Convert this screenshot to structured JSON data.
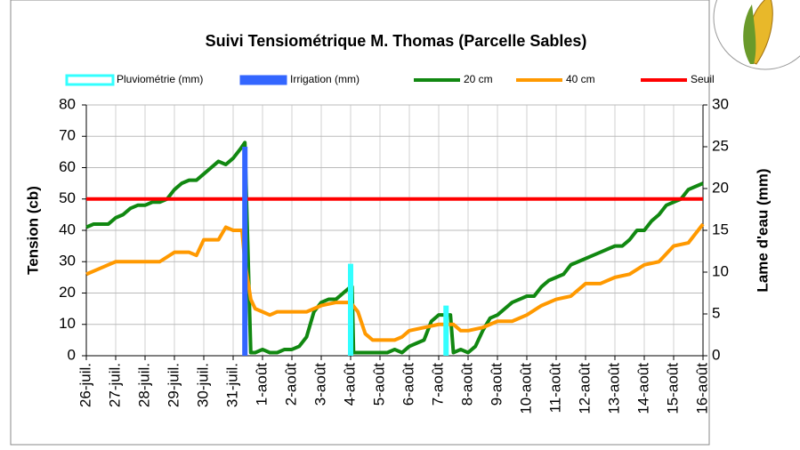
{
  "chart_data": {
    "type": "line",
    "title": "Suivi Tensiométrique M. Thomas (Parcelle Sables)",
    "y_label": "Tension (cb)",
    "y2_label": "Lame d'eau (mm)",
    "xlim": [
      0,
      21
    ],
    "xticks": [
      {
        "value": 0,
        "label": "26-juil."
      },
      {
        "value": 1,
        "label": "27-juil."
      },
      {
        "value": 2,
        "label": "28-juil."
      },
      {
        "value": 3,
        "label": "29-juil."
      },
      {
        "value": 4,
        "label": "30-juil."
      },
      {
        "value": 5,
        "label": "31-juil."
      },
      {
        "value": 6,
        "label": "1-août"
      },
      {
        "value": 7,
        "label": "2-août"
      },
      {
        "value": 8,
        "label": "3-août"
      },
      {
        "value": 9,
        "label": "4-août"
      },
      {
        "value": 10,
        "label": "5-août"
      },
      {
        "value": 11,
        "label": "6-août"
      },
      {
        "value": 12,
        "label": "7-août"
      },
      {
        "value": 13,
        "label": "8-août"
      },
      {
        "value": 14,
        "label": "9-août"
      },
      {
        "value": 15,
        "label": "10-août"
      },
      {
        "value": 16,
        "label": "11-août"
      },
      {
        "value": 17,
        "label": "12-août"
      },
      {
        "value": 18,
        "label": "13-août"
      },
      {
        "value": 19,
        "label": "14-août"
      },
      {
        "value": 20,
        "label": "15-août"
      },
      {
        "value": 21,
        "label": "16-août"
      }
    ],
    "ylim": [
      0,
      80
    ],
    "yticks": [
      0,
      10,
      20,
      30,
      40,
      50,
      60,
      70,
      80
    ],
    "y2lim": [
      0,
      30
    ],
    "y2ticks": [
      0,
      5,
      10,
      15,
      20,
      25,
      30
    ],
    "grid": true,
    "legend": "top",
    "series": [
      {
        "name": "Pluviométrie (mm)",
        "type": "bar",
        "axis": "y2",
        "color": "#33ffff",
        "x": [
          9.0,
          12.25
        ],
        "values": [
          11,
          6
        ]
      },
      {
        "name": "Irrigation (mm)",
        "type": "bar",
        "axis": "y2",
        "color": "#3366ff",
        "x": [
          5.4
        ],
        "values": [
          25
        ]
      },
      {
        "name": "20 cm",
        "type": "line",
        "color": "#118811",
        "x": [
          0,
          0.25,
          0.5,
          0.75,
          1,
          1.25,
          1.5,
          1.75,
          2,
          2.25,
          2.5,
          2.75,
          3,
          3.25,
          3.5,
          3.75,
          4,
          4.25,
          4.5,
          4.75,
          5,
          5.25,
          5.4,
          5.6,
          5.75,
          6,
          6.25,
          6.5,
          6.75,
          7,
          7.25,
          7.5,
          7.75,
          8,
          8.25,
          8.5,
          8.75,
          9,
          9.05,
          9.1,
          9.5,
          10,
          10.25,
          10.5,
          10.75,
          11,
          11.25,
          11.5,
          11.75,
          12,
          12.25,
          12.4,
          12.5,
          12.75,
          13,
          13.25,
          13.5,
          13.75,
          14,
          14.25,
          14.5,
          14.75,
          15,
          15.25,
          15.5,
          15.75,
          16,
          16.25,
          16.5,
          16.75,
          17,
          17.25,
          17.5,
          17.75,
          18,
          18.25,
          18.5,
          18.75,
          19,
          19.25,
          19.5,
          19.75,
          20,
          20.25,
          20.5,
          20.75,
          21
        ],
        "values": [
          41,
          42,
          42,
          42,
          44,
          45,
          47,
          48,
          48,
          49,
          49,
          50,
          53,
          55,
          56,
          56,
          58,
          60,
          62,
          61,
          63,
          66,
          68,
          1,
          1,
          2,
          1,
          1,
          2,
          2,
          3,
          6,
          14,
          17,
          18,
          18,
          20,
          22,
          22,
          1,
          1,
          1,
          1,
          2,
          1,
          3,
          4,
          5,
          11,
          13,
          13,
          13,
          1,
          2,
          1,
          3,
          8,
          12,
          13,
          15,
          17,
          18,
          19,
          19,
          22,
          24,
          25,
          26,
          29,
          30,
          31,
          32,
          33,
          34,
          35,
          35,
          37,
          40,
          40,
          43,
          45,
          48,
          49,
          50,
          53,
          54,
          55
        ]
      },
      {
        "name": "40 cm",
        "type": "line",
        "color": "#ff9900",
        "x": [
          0,
          0.5,
          1,
          1.5,
          2,
          2.5,
          3,
          3.25,
          3.5,
          3.75,
          4,
          4.5,
          4.75,
          5,
          5.3,
          5.4,
          5.6,
          5.75,
          6,
          6.25,
          6.5,
          7,
          7.5,
          8,
          8.5,
          9,
          9.25,
          9.5,
          9.75,
          10,
          10.5,
          10.75,
          11,
          11.5,
          12,
          12.5,
          12.75,
          13,
          13.5,
          14,
          14.5,
          15,
          15.5,
          16,
          16.5,
          17,
          17.5,
          18,
          18.5,
          19,
          19.5,
          20,
          20.5,
          21
        ],
        "values": [
          26,
          28,
          30,
          30,
          30,
          30,
          33,
          33,
          33,
          32,
          37,
          37,
          41,
          40,
          40,
          30,
          18,
          15,
          14,
          13,
          14,
          14,
          14,
          16,
          17,
          17,
          14,
          7,
          5,
          5,
          5,
          6,
          8,
          9,
          10,
          10,
          8,
          8,
          9,
          11,
          11,
          13,
          16,
          18,
          19,
          23,
          23,
          25,
          26,
          29,
          30,
          35,
          36,
          42
        ]
      },
      {
        "name": "Seuil",
        "type": "line",
        "color": "#ff0000",
        "x": [
          0,
          21
        ],
        "values": [
          50,
          50
        ]
      }
    ]
  }
}
